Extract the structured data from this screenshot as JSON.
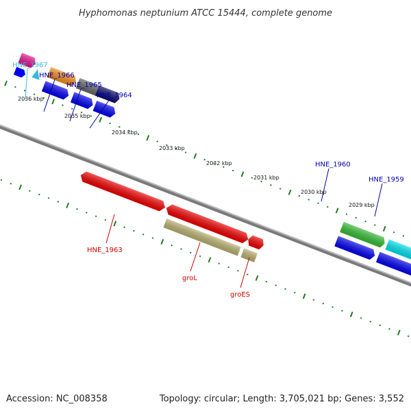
{
  "title": "Hyphomonas neptunium ATCC 15444, complete genome",
  "footer": {
    "accession": "Accession: NC_008358",
    "summary": "Topology: circular; Length: 3,705,021 bp; Genes: 3,552"
  },
  "colors": {
    "backbone": "#7a7a7a",
    "tick": "#1f7a1f",
    "label_blue": "#0000aa",
    "label_cyan": "#33bbdd",
    "label_red": "#cc0000"
  },
  "ruler": {
    "labels": [
      "2036 kbp",
      "2035 kbp",
      "2034 kbp",
      "2033 kbp",
      "2032 kbp",
      "2031 kbp",
      "2030 kbp",
      "2029 kbp"
    ]
  },
  "gene_labels": [
    {
      "id": "hne1967",
      "text": "HNE_1967",
      "color": "#33bbdd"
    },
    {
      "id": "hne1966",
      "text": "HNE_1966",
      "color": "#0000aa"
    },
    {
      "id": "hne1965",
      "text": "HNE_1965",
      "color": "#0000aa"
    },
    {
      "id": "hne1964",
      "text": "HNE_1964",
      "color": "#0000aa"
    },
    {
      "id": "hne1960",
      "text": "HNE_1960",
      "color": "#0000aa"
    },
    {
      "id": "hne1959",
      "text": "HNE_1959",
      "color": "#0000aa"
    },
    {
      "id": "hne1963",
      "text": "HNE_1963",
      "color": "#cc0000"
    },
    {
      "id": "grol",
      "text": "groL",
      "color": "#cc0000"
    },
    {
      "id": "groes",
      "text": "groES",
      "color": "#cc0000"
    }
  ]
}
